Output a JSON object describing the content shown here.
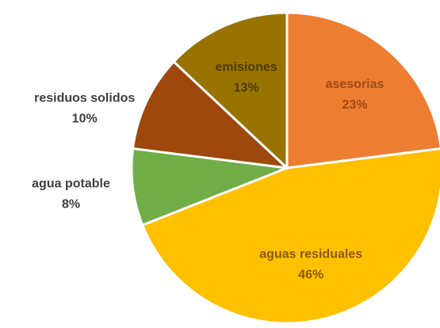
{
  "chart_data": {
    "type": "pie",
    "slices": [
      {
        "label": "asesorias",
        "value": 23,
        "value_label": "23%",
        "color": "#ED7D31",
        "label_color": "#9E4A14",
        "label_placement": "inside"
      },
      {
        "label": "aguas residuales",
        "value": 46,
        "value_label": "46%",
        "color": "#FFC000",
        "label_color": "#8A5A00",
        "label_placement": "inside"
      },
      {
        "label": "agua potable",
        "value": 8,
        "value_label": "8%",
        "color": "#70AD47",
        "label_color": "#3F3F3F",
        "label_placement": "outside-left"
      },
      {
        "label": "residuos solidos",
        "value": 10,
        "value_label": "10%",
        "color": "#9E480E",
        "label_color": "#3F3F3F",
        "label_placement": "outside-left"
      },
      {
        "label": "emisiones",
        "value": 13,
        "value_label": "13%",
        "color": "#997300",
        "label_color": "#4D3A00",
        "label_placement": "inside"
      }
    ],
    "start_angle": "12 o'clock",
    "direction": "clockwise",
    "legend": "none"
  }
}
